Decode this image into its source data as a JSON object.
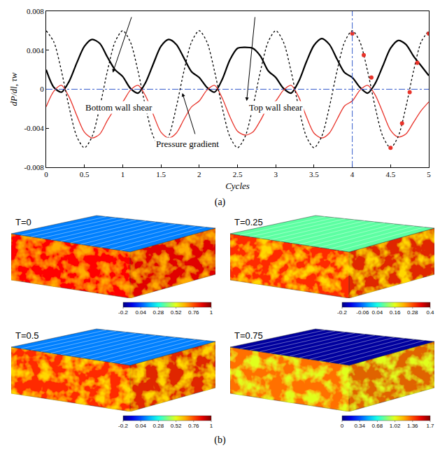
{
  "chart_data": {
    "type": "line",
    "x_label": "Cycles",
    "y_label": "dP/dl, τw",
    "x": [
      0,
      0.1,
      0.2,
      0.3,
      0.4,
      0.5,
      0.6,
      0.7,
      0.8,
      0.9,
      1,
      1.1,
      1.2,
      1.3,
      1.4,
      1.5,
      1.6,
      1.7,
      1.8,
      1.9,
      2,
      2.1,
      2.2,
      2.3,
      2.4,
      2.5,
      2.6,
      2.7,
      2.8,
      2.9,
      3,
      3.1,
      3.2,
      3.3,
      3.4,
      3.5,
      3.6,
      3.7,
      3.8,
      3.9,
      4,
      4.1,
      4.2,
      4.3,
      4.4,
      4.5,
      4.6,
      4.7,
      4.8,
      4.9,
      5
    ],
    "series": [
      {
        "name": "Top wall shear",
        "type": "line",
        "color": "#000000",
        "line_style": "solid",
        "values": [
          0.002,
          0.0002,
          -0.0003,
          0.0008,
          0.0027,
          0.0044,
          0.0051,
          0.0047,
          0.0033,
          0.002,
          0.0013,
          0.0001,
          -0.0004,
          0.0007,
          0.0026,
          0.0044,
          0.0051,
          0.0046,
          0.0032,
          0.0018,
          0.0012,
          0.0002,
          -0.0003,
          0.001,
          0.003,
          0.0042,
          0.0043,
          0.0042,
          0.0034,
          0.0019,
          0.0012,
          0.0001,
          -0.0004,
          0.0008,
          0.0028,
          0.0045,
          0.0052,
          0.0046,
          0.0031,
          0.0017,
          0.0012,
          0.0002,
          -0.0004,
          0.0006,
          0.0024,
          0.0042,
          0.005,
          0.0046,
          0.0034,
          0.0024,
          0.0014
        ]
      },
      {
        "name": "Bottom wall shear",
        "type": "line",
        "color": "#e8332a",
        "line_style": "solid",
        "values": [
          -0.0018,
          -0.0002,
          0.0004,
          -0.0008,
          -0.0027,
          -0.0044,
          -0.005,
          -0.0046,
          -0.0032,
          -0.002,
          -0.0013,
          -0.0001,
          0.0004,
          -0.0007,
          -0.0026,
          -0.0044,
          -0.005,
          -0.0045,
          -0.0031,
          -0.0018,
          -0.0012,
          -0.0001,
          0.0004,
          -0.0009,
          -0.0028,
          -0.0043,
          -0.0047,
          -0.0044,
          -0.0032,
          -0.0018,
          -0.0012,
          -0.0001,
          0.0004,
          -0.0008,
          -0.0028,
          -0.0045,
          -0.005,
          -0.0045,
          -0.0031,
          -0.0017,
          -0.0012,
          -0.0001,
          0.0004,
          -0.0006,
          -0.0024,
          -0.0042,
          -0.0049,
          -0.0046,
          -0.0034,
          -0.0022,
          -0.0013
        ]
      },
      {
        "name": "Pressure gradient",
        "type": "line",
        "color": "#000000",
        "line_style": "dotted",
        "values": [
          0.006,
          0.00485,
          0.00185,
          -0.00185,
          -0.00485,
          -0.006,
          -0.00485,
          -0.00185,
          0.00185,
          0.00485,
          0.006,
          0.00485,
          0.00185,
          -0.00185,
          -0.00485,
          -0.006,
          -0.00485,
          -0.00185,
          0.00185,
          0.00485,
          0.006,
          0.00485,
          0.00185,
          -0.00185,
          -0.00485,
          -0.006,
          -0.00485,
          -0.00185,
          0.00185,
          0.00485,
          0.006,
          0.00485,
          0.00185,
          -0.00185,
          -0.00485,
          -0.006,
          -0.00485,
          -0.00185,
          0.00185,
          0.00485,
          0.006,
          0.00485,
          0.00185,
          -0.00185,
          -0.00485,
          -0.006,
          -0.00485,
          -0.00185,
          0.00185,
          0.00485,
          0.006
        ]
      },
      {
        "type": "scatter",
        "marker": "circle",
        "color": "#e8332a",
        "x": [
          4.0,
          4.15,
          4.25,
          4.5,
          4.65,
          4.75,
          4.85,
          5.0
        ],
        "values": [
          0.0057,
          0.0035,
          0.0012,
          -0.006,
          -0.0035,
          -0.0003,
          0.0027,
          0.0057
        ]
      }
    ],
    "xlim": [
      0,
      5
    ],
    "xticks": [
      0,
      0.5,
      1,
      1.5,
      2,
      2.5,
      3,
      3.5,
      4,
      4.5,
      5
    ],
    "ylim": [
      -0.008,
      0.008
    ],
    "yticks": [
      -0.008,
      -0.004,
      0,
      0.004,
      0.008
    ],
    "grid": false,
    "reference_lines": {
      "x": [
        4
      ],
      "y": [
        0
      ]
    },
    "annotations": [
      {
        "text": "Bottom wall shear",
        "x": 0.95,
        "y": -0.0019,
        "arrow_from": [
          1.12,
          0.0075
        ],
        "arrow_to": [
          0.87,
          0.0017
        ]
      },
      {
        "text": "Top wall shear",
        "x": 3.0,
        "y": -0.0019,
        "arrow_from": [
          2.73,
          0.0075
        ],
        "arrow_to": [
          2.62,
          -0.0012
        ]
      },
      {
        "text": "Pressure gradient",
        "x": 1.85,
        "y": -0.0056,
        "arrow_from": [
          1.95,
          -0.0047
        ],
        "arrow_to": [
          1.78,
          -0.0004
        ]
      }
    ]
  },
  "captions": [
    "(a)",
    "(b)"
  ],
  "panels": [
    {
      "label": "T=0",
      "top_level": 0.1,
      "side_level": 0.85,
      "colorbar": {
        "range": [
          -0.2,
          1
        ],
        "ticks": [
          -0.2,
          0.04,
          0.28,
          0.52,
          0.76,
          1
        ]
      }
    },
    {
      "label": "T=0.25",
      "top_level": 0.08,
      "side_level": 0.3,
      "colorbar": {
        "range": [
          -0.2,
          0.4
        ],
        "ticks": [
          -0.2,
          -0.06,
          0.04,
          0.16,
          0.28,
          0.4
        ]
      }
    },
    {
      "label": "T=0.5",
      "top_level": 0.1,
      "side_level": 0.8,
      "colorbar": {
        "range": [
          -0.2,
          1
        ],
        "ticks": [
          -0.2,
          0.04,
          0.28,
          0.52,
          0.76,
          1
        ]
      }
    },
    {
      "label": "T=0.75",
      "top_level": 0.05,
      "side_level": 1.3,
      "colorbar": {
        "range": [
          0,
          1.7
        ],
        "ticks": [
          0,
          0.34,
          0.68,
          1.02,
          1.36,
          1.7
        ]
      }
    }
  ]
}
